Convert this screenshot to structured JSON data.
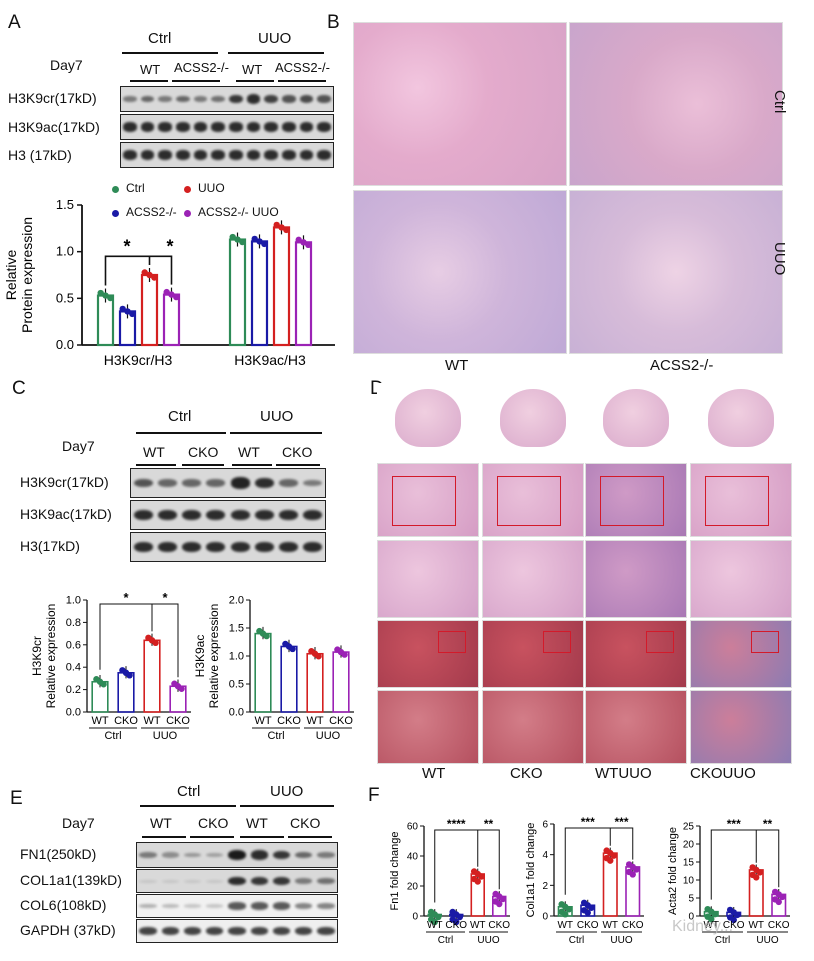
{
  "panels": {
    "A": "A",
    "B": "B",
    "C": "C",
    "D": "D",
    "E": "E",
    "F": "F"
  },
  "panelA": {
    "groups": [
      "Ctrl",
      "UUO"
    ],
    "day": "Day7",
    "lanes": [
      "WT",
      "ACSS2-/-",
      "WT",
      "ACSS2-/-"
    ],
    "blots": [
      "H3K9cr(17kD)",
      "H3K9ac(17kD)",
      "H3 (17kD)"
    ],
    "legend": [
      "Ctrl",
      "ACSS2-/-",
      "UUO",
      "ACSS2-/- UUO"
    ],
    "legend_colors": [
      "#2e8b57",
      "#1a1aa6",
      "#d42020",
      "#9b22b5"
    ]
  },
  "panelB": {
    "rows": [
      "Ctrl",
      "UUO"
    ],
    "cols": [
      "WT",
      "ACSS2-/-"
    ]
  },
  "panelC": {
    "groups": [
      "Ctrl",
      "UUO"
    ],
    "day": "Day7",
    "lanes": [
      "WT",
      "CKO",
      "WT",
      "CKO"
    ],
    "blots": [
      "H3K9cr(17kD)",
      "H3K9ac(17kD)",
      "H3(17kD)"
    ]
  },
  "panelD": {
    "cols": [
      "WT",
      "CKO",
      "WTUUO",
      "CKOUUO"
    ]
  },
  "panelE": {
    "groups": [
      "Ctrl",
      "UUO"
    ],
    "day": "Day7",
    "lanes": [
      "WT",
      "CKO",
      "WT",
      "CKO"
    ],
    "blots": [
      "FN1(250kD)",
      "COL1a1(139kD)",
      "COL6(108kD)",
      "GAPDH (37kD)"
    ]
  },
  "watermark": "Kidney...",
  "chart_data": [
    {
      "id": "A-bar",
      "type": "bar",
      "ylabel": "Relative Protein expression",
      "ylim": [
        0,
        1.5
      ],
      "yticks": [
        "0.0",
        "0.5",
        "1.0",
        "1.5"
      ],
      "categories": [
        "H3K9cr/H3",
        "H3K9ac/H3"
      ],
      "series": [
        {
          "name": "Ctrl",
          "values": [
            0.53,
            1.13
          ],
          "color": "#2e8b57"
        },
        {
          "name": "ACSS2-/-",
          "values": [
            0.36,
            1.11
          ],
          "color": "#1a1aa6"
        },
        {
          "name": "UUO",
          "values": [
            0.75,
            1.26
          ],
          "color": "#d42020"
        },
        {
          "name": "ACSS2-/- UUO",
          "values": [
            0.54,
            1.1
          ],
          "color": "#9b22b5"
        }
      ],
      "annotations": [
        "*",
        "*"
      ]
    },
    {
      "id": "C-H3K9cr",
      "type": "bar",
      "ylabel": "Relative expression",
      "ylabel2": "H3K9cr",
      "ylim": [
        0,
        1.0
      ],
      "yticks": [
        "0.0",
        "0.2",
        "0.4",
        "0.6",
        "0.8",
        "1.0"
      ],
      "categories": [
        "WT",
        "CKO",
        "WT",
        "CKO"
      ],
      "groups": [
        "Ctrl",
        "UUO"
      ],
      "values": [
        0.27,
        0.35,
        0.64,
        0.23
      ],
      "colors": [
        "#2e8b57",
        "#1a1aa6",
        "#d42020",
        "#9b22b5"
      ],
      "annotations": [
        "*",
        "*"
      ]
    },
    {
      "id": "C-H3K9ac",
      "type": "bar",
      "ylabel": "Relative expression",
      "ylabel2": "H3K9ac",
      "ylim": [
        0,
        2.0
      ],
      "yticks": [
        "0.0",
        "0.5",
        "1.0",
        "1.5",
        "2.0"
      ],
      "categories": [
        "WT",
        "CKO",
        "WT",
        "CKO"
      ],
      "groups": [
        "Ctrl",
        "UUO"
      ],
      "values": [
        1.4,
        1.17,
        1.04,
        1.07
      ],
      "colors": [
        "#2e8b57",
        "#1a1aa6",
        "#d42020",
        "#9b22b5"
      ]
    },
    {
      "id": "F-Fn1",
      "type": "bar",
      "ylabel": "Fn1 fold change",
      "ylim": [
        0,
        60
      ],
      "yticks": [
        "0",
        "20",
        "40",
        "60"
      ],
      "categories": [
        "WT",
        "CKO",
        "WT",
        "CKO"
      ],
      "groups": [
        "Ctrl",
        "UUO"
      ],
      "values": [
        1,
        1,
        28,
        13
      ],
      "colors": [
        "#2e8b57",
        "#1a1aa6",
        "#d42020",
        "#9b22b5"
      ],
      "annotations": [
        "****",
        "**"
      ]
    },
    {
      "id": "F-Col1a1",
      "type": "bar",
      "ylabel": "Col1a1 fold change",
      "ylim": [
        0,
        6
      ],
      "yticks": [
        "0",
        "2",
        "4",
        "6"
      ],
      "categories": [
        "WT",
        "CKO",
        "WT",
        "CKO"
      ],
      "groups": [
        "Ctrl",
        "UUO"
      ],
      "values": [
        0.6,
        0.7,
        4.1,
        3.2
      ],
      "colors": [
        "#2e8b57",
        "#1a1aa6",
        "#d42020",
        "#9b22b5"
      ],
      "annotations": [
        "***",
        "***"
      ]
    },
    {
      "id": "F-Acta2",
      "type": "bar",
      "ylabel": "Acta2 fold change",
      "ylim": [
        0,
        25
      ],
      "yticks": [
        "0",
        "5",
        "10",
        "15",
        "20",
        "25"
      ],
      "categories": [
        "WT",
        "CKO",
        "WT",
        "CKO"
      ],
      "groups": [
        "Ctrl",
        "UUO"
      ],
      "values": [
        1.2,
        1,
        12.8,
        6
      ],
      "colors": [
        "#2e8b57",
        "#1a1aa6",
        "#d42020",
        "#9b22b5"
      ],
      "annotations": [
        "***",
        "**"
      ]
    }
  ]
}
